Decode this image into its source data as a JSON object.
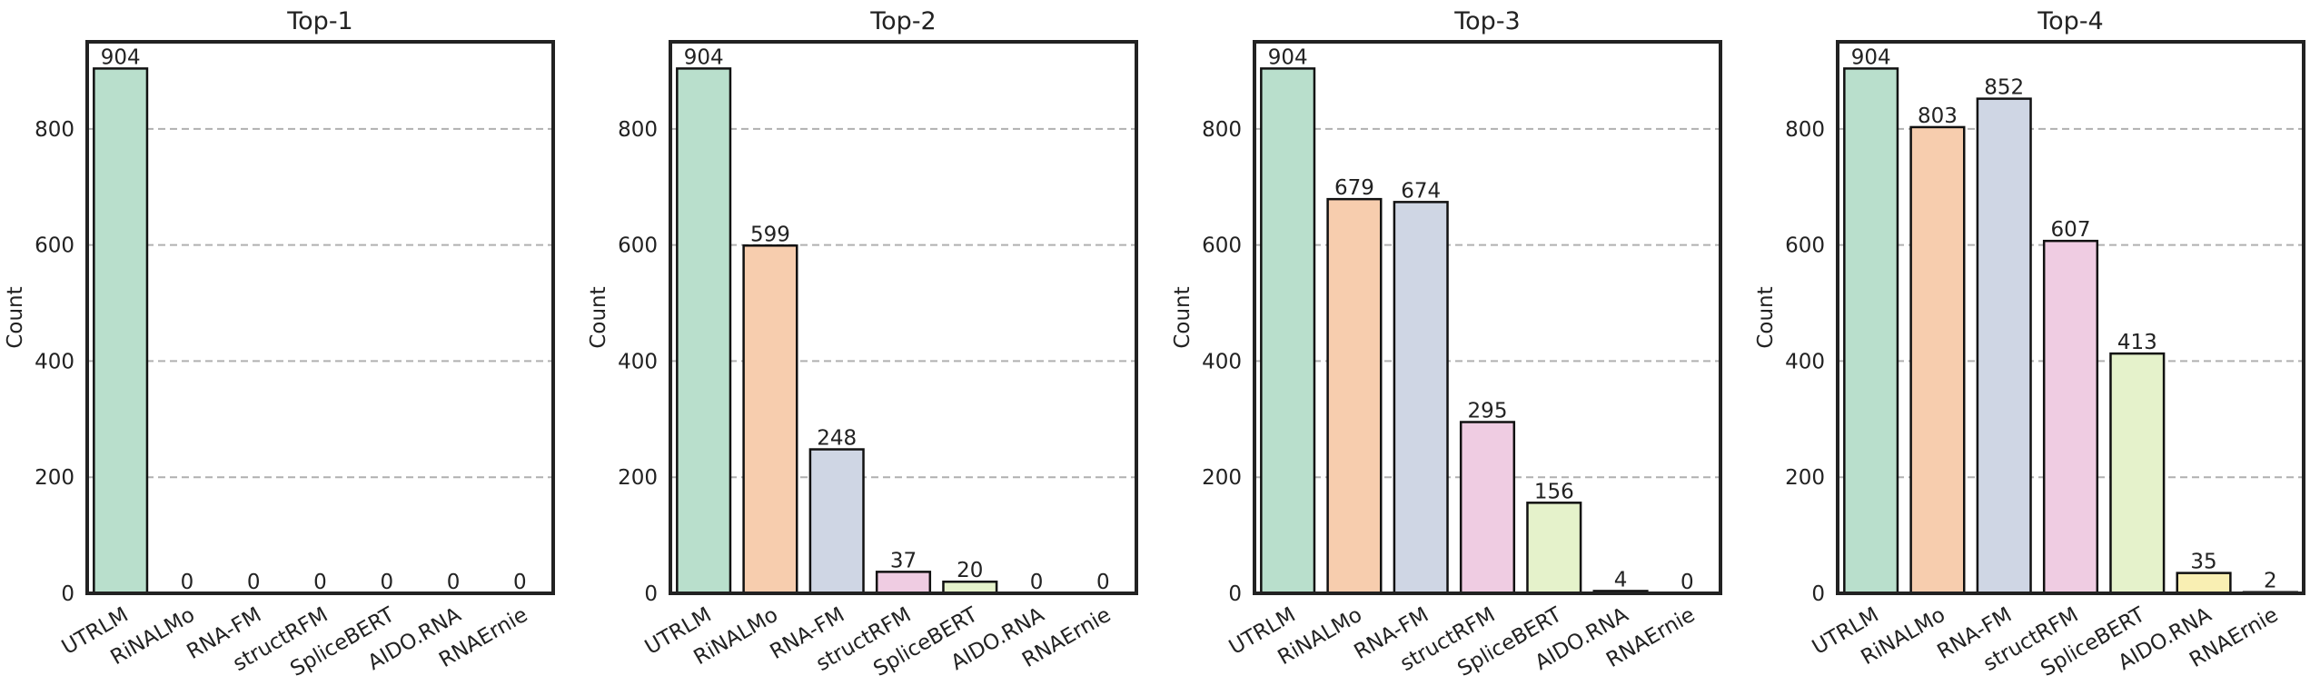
{
  "chart_data": [
    {
      "type": "bar",
      "title": "Top-1",
      "ylabel": "Count",
      "categories": [
        "UTRLM",
        "RiNALMo",
        "RNA-FM",
        "structRFM",
        "SpliceBERT",
        "AIDO.RNA",
        "RNAErnie"
      ],
      "values": [
        904,
        0,
        0,
        0,
        0,
        0,
        0
      ],
      "colors": [
        "#b9dfcc",
        "#f7cdae",
        "#cfd6e4",
        "#efcce2",
        "#e5f2cb",
        "#f9efb3",
        "#efe3cf"
      ],
      "ylim": [
        0,
        950
      ],
      "yticks": [
        0,
        200,
        400,
        600,
        800
      ],
      "grid": true
    },
    {
      "type": "bar",
      "title": "Top-2",
      "ylabel": "Count",
      "categories": [
        "UTRLM",
        "RiNALMo",
        "RNA-FM",
        "structRFM",
        "SpliceBERT",
        "AIDO.RNA",
        "RNAErnie"
      ],
      "values": [
        904,
        599,
        248,
        37,
        20,
        0,
        0
      ],
      "colors": [
        "#b9dfcc",
        "#f7cdae",
        "#cfd6e4",
        "#efcce2",
        "#e5f2cb",
        "#f9efb3",
        "#efe3cf"
      ],
      "ylim": [
        0,
        950
      ],
      "yticks": [
        0,
        200,
        400,
        600,
        800
      ],
      "grid": true
    },
    {
      "type": "bar",
      "title": "Top-3",
      "ylabel": "Count",
      "categories": [
        "UTRLM",
        "RiNALMo",
        "RNA-FM",
        "structRFM",
        "SpliceBERT",
        "AIDO.RNA",
        "RNAErnie"
      ],
      "values": [
        904,
        679,
        674,
        295,
        156,
        4,
        0
      ],
      "colors": [
        "#b9dfcc",
        "#f7cdae",
        "#cfd6e4",
        "#efcce2",
        "#e5f2cb",
        "#f9efb3",
        "#efe3cf"
      ],
      "ylim": [
        0,
        950
      ],
      "yticks": [
        0,
        200,
        400,
        600,
        800
      ],
      "grid": true
    },
    {
      "type": "bar",
      "title": "Top-4",
      "ylabel": "Count",
      "categories": [
        "UTRLM",
        "RiNALMo",
        "RNA-FM",
        "structRFM",
        "SpliceBERT",
        "AIDO.RNA",
        "RNAErnie"
      ],
      "values": [
        904,
        803,
        852,
        607,
        413,
        35,
        2
      ],
      "colors": [
        "#b9dfcc",
        "#f7cdae",
        "#cfd6e4",
        "#efcce2",
        "#e5f2cb",
        "#f9efb3",
        "#efe3cf"
      ],
      "ylim": [
        0,
        950
      ],
      "yticks": [
        0,
        200,
        400,
        600,
        800
      ],
      "grid": true
    }
  ]
}
